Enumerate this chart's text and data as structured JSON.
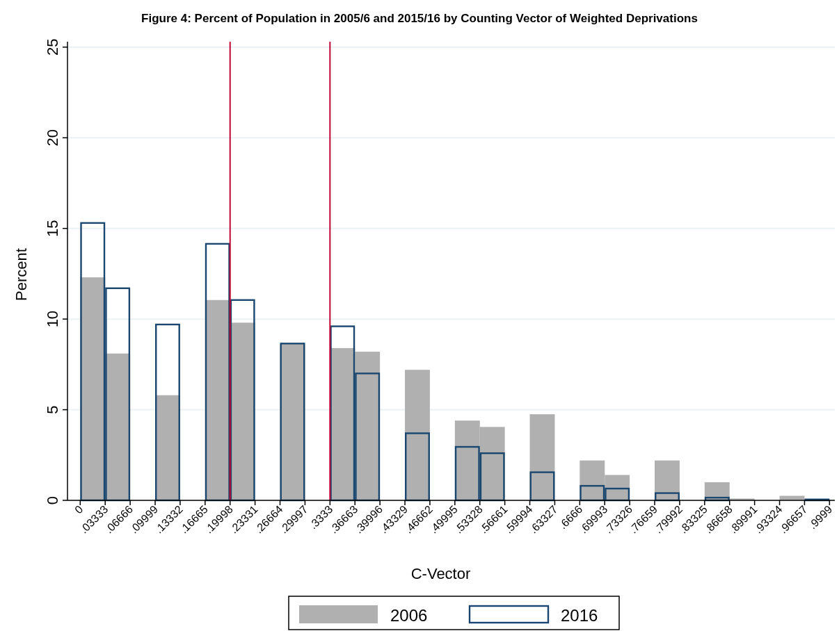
{
  "chart_data": {
    "type": "histogram",
    "title": "Figure 4: Percent of Population in 2005/6 and 2015/16 by Counting Vector of Weighted Deprivations",
    "xlabel": "C-Vector",
    "ylabel": "Percent",
    "bins": [
      0,
      0.03333,
      0.06666,
      0.09999,
      0.13332,
      0.16665,
      0.19998,
      0.23331,
      0.26664,
      0.29997,
      0.3333,
      0.36663,
      0.39996,
      0.43329,
      0.46662,
      0.49995,
      0.53328,
      0.56661,
      0.59994,
      0.63327,
      0.6666,
      0.69993,
      0.73326,
      0.76659,
      0.79992,
      0.83325,
      0.86658,
      0.89991,
      0.93324,
      0.96657,
      0.9999
    ],
    "series": [
      {
        "name": "2006",
        "color": "#b0b0b0",
        "values": [
          12.3,
          8.1,
          0,
          5.8,
          0,
          11.05,
          9.8,
          0,
          8.65,
          0,
          8.4,
          8.2,
          0,
          7.2,
          0,
          4.4,
          4.05,
          0,
          4.75,
          0,
          2.2,
          1.4,
          0,
          2.2,
          0,
          1.0,
          0.1,
          0,
          0.25,
          0
        ]
      },
      {
        "name": "2016",
        "color": "#1a476f",
        "values": [
          15.3,
          11.7,
          0,
          9.7,
          0,
          14.15,
          11.05,
          0,
          8.65,
          0,
          9.6,
          7.0,
          0,
          3.7,
          0,
          2.95,
          2.6,
          0,
          1.55,
          0,
          0.8,
          0.65,
          0,
          0.4,
          0,
          0.15,
          0,
          0,
          0,
          0.05
        ]
      }
    ],
    "xlim": [
      -0.017,
      1.007
    ],
    "xticks": [
      0,
      {
        "value": 0.03333,
        "label": ".03333"
      },
      {
        "value": 0.06666,
        "label": ".06666"
      },
      {
        "value": 0.09999,
        "label": ".09999"
      },
      {
        "value": 0.13332,
        "label": ".13332"
      },
      {
        "value": 0.16665,
        "label": ".16665"
      },
      {
        "value": 0.19998,
        "label": ".19998"
      },
      {
        "value": 0.23331,
        "label": ".23331"
      },
      {
        "value": 0.26664,
        "label": ".26664"
      },
      {
        "value": 0.29997,
        "label": ".29997"
      },
      {
        "value": 0.3333,
        "label": ".3333"
      },
      {
        "value": 0.36663,
        "label": ".36663"
      },
      {
        "value": 0.39996,
        "label": ".39996"
      },
      {
        "value": 0.43329,
        "label": ".43329"
      },
      {
        "value": 0.46662,
        "label": ".46662"
      },
      {
        "value": 0.49995,
        "label": ".49995"
      },
      {
        "value": 0.53328,
        "label": ".53328"
      },
      {
        "value": 0.56661,
        "label": ".56661"
      },
      {
        "value": 0.59994,
        "label": ".59994"
      },
      {
        "value": 0.63327,
        "label": ".63327"
      },
      {
        "value": 0.6666,
        "label": ".6666"
      },
      {
        "value": 0.69993,
        "label": ".69993"
      },
      {
        "value": 0.73326,
        "label": ".73326"
      },
      {
        "value": 0.76659,
        "label": ".76659"
      },
      {
        "value": 0.79992,
        "label": ".79992"
      },
      {
        "value": 0.83325,
        "label": ".83325"
      },
      {
        "value": 0.86658,
        "label": ".86658"
      },
      {
        "value": 0.89991,
        "label": ".89991"
      },
      {
        "value": 0.93324,
        "label": ".93324"
      },
      {
        "value": 0.96657,
        "label": ".96657"
      },
      {
        "value": 0.9999,
        "label": ".9999"
      }
    ],
    "ylim": [
      0,
      25.3
    ],
    "yticks": [
      0,
      5,
      10,
      15,
      20,
      25
    ],
    "grid": "y",
    "ref_lines": [
      {
        "axis": "x",
        "value": 0.19998,
        "color": "#c10534"
      },
      {
        "axis": "x",
        "value": 0.3333,
        "color": "#c10534"
      }
    ],
    "legend": "bottom"
  }
}
